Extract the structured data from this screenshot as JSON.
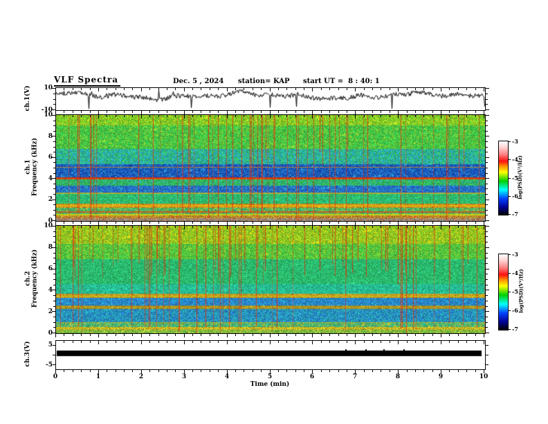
{
  "header": {
    "title": "VLF Spectra",
    "date": "Dec. 5 , 2024",
    "station": "station= KAP",
    "start_ut": "start UT =  8 : 40: 1"
  },
  "axes": {
    "x": {
      "label": "Time (min)",
      "min": 0,
      "max": 10,
      "ticks": [
        "0",
        "1",
        "2",
        "3",
        "4",
        "5",
        "6",
        "7",
        "8",
        "9",
        "10"
      ]
    },
    "ch1v": {
      "label": "ch.1(V)",
      "min": -10,
      "max": 10,
      "ticks": [
        "10",
        "-10"
      ]
    },
    "spec1": {
      "line1": "ch.1",
      "line2": "Frequency (kHz)",
      "min": 0,
      "max": 10,
      "ticks": [
        "0",
        "2",
        "4",
        "6",
        "8",
        "10"
      ]
    },
    "spec2": {
      "line1": "ch.2",
      "line2": "Frequency (kHz)",
      "min": 0,
      "max": 10,
      "ticks": [
        "0",
        "2",
        "4",
        "6",
        "8",
        "10"
      ]
    },
    "ch3v": {
      "label": "ch.3(V)",
      "ticks": [
        "5",
        "-5"
      ]
    }
  },
  "colorbars": [
    {
      "label": "log(PSD)(V²/Hz)",
      "ticks": [
        "-3",
        "-4",
        "-5",
        "-6",
        "-7"
      ],
      "zlim": [
        -7,
        -3
      ]
    },
    {
      "label": "log(PSD)(V²/Hz)",
      "ticks": [
        "-3",
        "-4",
        "-5",
        "-6",
        "-7"
      ],
      "zlim": [
        -7,
        -3
      ]
    }
  ],
  "colormap": [
    [
      0.0,
      "#ffffff"
    ],
    [
      0.08,
      "#ffd5d5"
    ],
    [
      0.18,
      "#ff8080"
    ],
    [
      0.27,
      "#ff1010"
    ],
    [
      0.34,
      "#ff9000"
    ],
    [
      0.42,
      "#ffff00"
    ],
    [
      0.54,
      "#00d000"
    ],
    [
      0.66,
      "#00ffff"
    ],
    [
      0.78,
      "#0040ff"
    ],
    [
      0.9,
      "#000090"
    ],
    [
      1.0,
      "#000000"
    ]
  ],
  "chart_data": [
    {
      "type": "line",
      "panel": "ch1_waveform",
      "ylabel": "ch.1(V)",
      "xlim": [
        0,
        10
      ],
      "ylim": [
        -10,
        10
      ],
      "description": "Continuous noisy black broadband waveform fluctuating around +3 V with about +/-3 V excursions and sporadic spikes reaching -9 V and +9 V over the 10 minute record",
      "gen": {
        "seed": 24601,
        "base": 3.0,
        "slow_amp": 2.0,
        "noise": 2.2,
        "neg_spike_prob": 0.012,
        "pos_spike_prob": 0.006
      }
    },
    {
      "type": "heatmap",
      "panel": "ch1_spectrogram",
      "ylabel": "ch.1 Frequency (kHz)",
      "xlim": [
        0,
        10
      ],
      "ylim": [
        0,
        10
      ],
      "zlabel": "log(PSD)(V²/Hz)",
      "zlim": [
        -7,
        -3
      ],
      "description": "VLF spectrogram: green/yellow above 7 kHz with dense red sferic streaks, cyan band 5.3-6.8 kHz, dark blue bands 4.2-5.3 and 2.6-3.3 kHz, red line near 4 kHz, orange band near 1.4 kHz, grey band at bottom",
      "render": {
        "seed": 1234567,
        "bands": [
          [
            9.0,
            10.01,
            "#6cc82a",
            "#c8d41e",
            0.28
          ],
          [
            6.8,
            9.0,
            "#38c44a",
            "#9cc828",
            0.22
          ],
          [
            5.35,
            6.8,
            "#28a8c0",
            "#36c452",
            0.38
          ],
          [
            4.15,
            5.35,
            "#1848b4",
            "#2696cc",
            0.3
          ],
          [
            3.95,
            4.15,
            "#c84214",
            "#d8901c",
            0.35
          ],
          [
            3.35,
            3.95,
            "#34b852",
            "#28a8c8",
            0.22
          ],
          [
            2.6,
            3.35,
            "#2458c8",
            "#28a4bc",
            0.36
          ],
          [
            1.65,
            2.6,
            "#30b860",
            "#24c4a0",
            0.25
          ],
          [
            1.25,
            1.65,
            "#c8a424",
            "#d06818",
            0.32
          ],
          [
            0.55,
            1.25,
            "#34b474",
            "#c0b424",
            0.26
          ],
          [
            0.25,
            0.55,
            "#b4a030",
            "#c85420",
            0.35
          ],
          [
            0.0,
            0.25,
            "#94948a",
            "#c06030",
            0.3
          ]
        ],
        "hlines": [
          [
            5.05,
            "#d09018"
          ],
          [
            4.05,
            "#d82a08"
          ],
          [
            2.62,
            "#c8b818"
          ],
          [
            1.45,
            "#e8c008"
          ],
          [
            0.85,
            "#d84a10"
          ],
          [
            0.6,
            "#e8d808"
          ]
        ],
        "streaks": {
          "density": 0.11,
          "full_depth_prob": 0.85
        }
      }
    },
    {
      "type": "heatmap",
      "panel": "ch2_spectrogram",
      "ylabel": "ch.2 Frequency (kHz)",
      "xlim": [
        0,
        10
      ],
      "ylim": [
        0,
        10
      ],
      "zlabel": "log(PSD)(V²/Hz)",
      "zlim": [
        -7,
        -3
      ],
      "description": "VLF spectrogram: yellow-green above 7 kHz with heavy red sferic streaks concentrated in the upper half, teal 4-7 kHz, yellow band near 3.4 kHz, blue band 2.5-3.3 kHz, olive band near 2.4 kHz, cyan 1-2.2 kHz, yellow band near 0.5 kHz",
      "render": {
        "seed": 7654321,
        "bands": [
          [
            8.3,
            10.01,
            "#7cc426",
            "#d8cc14",
            0.3
          ],
          [
            6.9,
            8.3,
            "#44c444",
            "#9cc824",
            0.24
          ],
          [
            4.6,
            6.9,
            "#28b868",
            "#34c888",
            0.2
          ],
          [
            3.65,
            4.6,
            "#26b88c",
            "#28ccaa",
            0.24
          ],
          [
            3.3,
            3.65,
            "#b8a822",
            "#c88824",
            0.34
          ],
          [
            2.55,
            3.3,
            "#2878c8",
            "#28a8cc",
            0.36
          ],
          [
            2.25,
            2.55,
            "#988426",
            "#b8a830",
            0.32
          ],
          [
            1.0,
            2.25,
            "#28a8b8",
            "#2468c8",
            0.32
          ],
          [
            0.6,
            1.0,
            "#30b484",
            "#c4b428",
            0.28
          ],
          [
            0.35,
            0.6,
            "#c4c430",
            "#b88620",
            0.32
          ],
          [
            0.0,
            0.35,
            "#64b440",
            "#c8c838",
            0.32
          ]
        ],
        "hlines": [
          [
            3.45,
            "#d8cc10"
          ],
          [
            2.4,
            "#c8a810"
          ],
          [
            1.0,
            "#b8b820"
          ],
          [
            0.5,
            "#e0d008"
          ]
        ],
        "streaks": {
          "density": 0.14,
          "full_depth_prob": 0.45
        }
      }
    },
    {
      "type": "line",
      "panel": "ch3",
      "ylabel": "ch.3(V)",
      "xlim": [
        0,
        10
      ],
      "ylim": [
        -7,
        7
      ],
      "description": "Flat thick black trace at approximately +1 V spanning the entire record",
      "value_v": 1
    }
  ]
}
